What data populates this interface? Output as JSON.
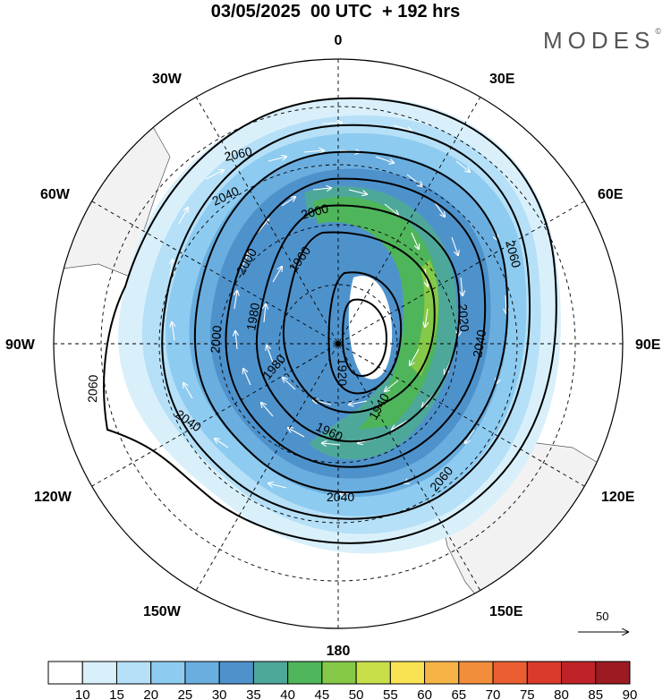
{
  "title": "03/05/2025  00 UTC  + 192 hrs",
  "logo": "MODES",
  "logo_mark": "©",
  "longitude_labels": {
    "top": "0",
    "bottom": "180",
    "left": "90W",
    "right": "90E",
    "tl1": "30W",
    "tl2": "60W",
    "tr1": "30E",
    "tr2": "60E",
    "bl1": "120W",
    "bl2": "150W",
    "br1": "120E",
    "br2": "150E"
  },
  "contour_labels": [
    "2060",
    "2040",
    "2000",
    "1960",
    "2000",
    "1980",
    "1920",
    "2000",
    "1980",
    "2040",
    "2060",
    "1960",
    "1940",
    "2040",
    "2020",
    "2060",
    "2040",
    "2060"
  ],
  "vector_scale": {
    "label": "50"
  },
  "colorbar": {
    "labels": [
      "10",
      "15",
      "20",
      "25",
      "30",
      "35",
      "40",
      "45",
      "50",
      "55",
      "60",
      "65",
      "70",
      "75",
      "80",
      "85",
      "90"
    ],
    "colors": [
      "#ffffff",
      "#d9f0fb",
      "#b5e0f7",
      "#8ecbf0",
      "#6aaedf",
      "#4e92cc",
      "#4ea89a",
      "#4fb55a",
      "#86c847",
      "#c8df4a",
      "#f9e253",
      "#f6b447",
      "#f28d3c",
      "#ea5e31",
      "#d93a2c",
      "#bf2229",
      "#9c1a22"
    ]
  }
}
